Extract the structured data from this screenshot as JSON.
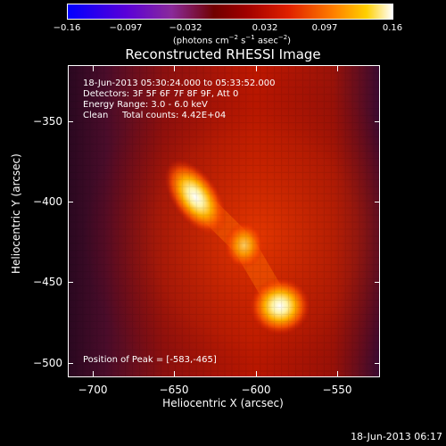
{
  "colorbar": {
    "ticks": [
      "−0.16",
      "−0.097",
      "−0.032",
      "0.032",
      "0.097",
      "0.16"
    ],
    "units_prefix": "(photons cm",
    "units_exp1": "−2",
    "units_mid1": " s",
    "units_exp2": "−1",
    "units_mid2": " asec",
    "units_exp3": "−2",
    "units_suffix": ")"
  },
  "title": "Reconstructed RHESSI Image",
  "info": {
    "time_range": "18-Jun-2013 05:30:24.000 to 05:33:52.000",
    "detectors": "Detectors: 3F 5F 6F 7F 8F 9F, Att 0",
    "energy_range": "Energy Range: 3.0 - 6.0 keV",
    "clean_label": "Clean",
    "total_counts": "Total counts: 4.42E+04",
    "peak": "Position of Peak = [-583,-465]"
  },
  "y_axis": {
    "label": "Heliocentric Y (arcsec)",
    "ticks": [
      "−350",
      "−400",
      "−450",
      "−500"
    ]
  },
  "x_axis": {
    "label": "Heliocentric X (arcsec)",
    "ticks": [
      "−700",
      "−650",
      "−600",
      "−550"
    ]
  },
  "timestamp": "18-Jun-2013 06:17",
  "sources": [
    {
      "name": "source-1",
      "x": -637,
      "y": -397,
      "intensity": 1.0
    },
    {
      "name": "source-2",
      "x": -607,
      "y": -427,
      "intensity": 0.85
    },
    {
      "name": "source-3",
      "x": -585,
      "y": -465,
      "intensity": 1.0
    }
  ],
  "colors": {
    "background": "#000000",
    "frame": "#ffffff",
    "text": "#ffffff"
  }
}
